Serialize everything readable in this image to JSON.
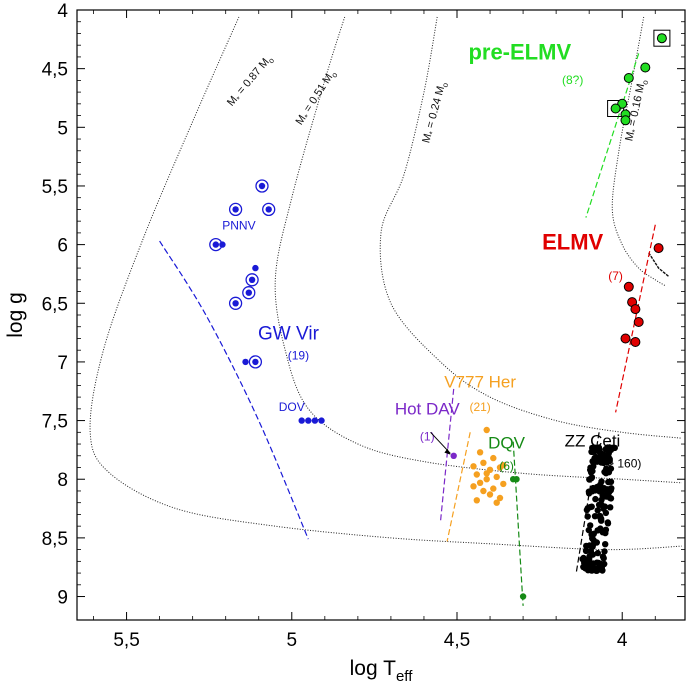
{
  "chart_data": {
    "type": "scatter",
    "xlabel_main": "log T",
    "xlabel_sub": "eff",
    "ylabel": "log g",
    "xlim": [
      5.65,
      3.81
    ],
    "ylim": [
      9.2,
      4.0
    ],
    "x_ticks": [
      5.5,
      5.0,
      4.5,
      4.0
    ],
    "x_tick_labels": [
      "5,5",
      "5",
      "4,5",
      "4"
    ],
    "y_ticks": [
      4,
      4.5,
      5,
      5.5,
      6,
      6.5,
      7,
      7.5,
      8,
      8.5,
      9
    ],
    "y_tick_labels": [
      "4",
      "4,5",
      "5",
      "5,5",
      "6",
      "6,5",
      "7",
      "7,5",
      "8",
      "8,5",
      "9"
    ],
    "tracks": [
      {
        "label": "M = 0.87 M",
        "points": [
          [
            5.16,
            4.06
          ],
          [
            5.3,
            4.95
          ],
          [
            5.45,
            5.95
          ],
          [
            5.57,
            6.9
          ],
          [
            5.61,
            7.6
          ],
          [
            5.55,
            7.95
          ],
          [
            5.35,
            8.25
          ],
          [
            5.05,
            8.4
          ],
          [
            4.7,
            8.5
          ],
          [
            4.4,
            8.55
          ],
          [
            4.05,
            8.6
          ],
          [
            3.82,
            8.57
          ]
        ]
      },
      {
        "label": "M = 0.51 M",
        "points": [
          [
            4.84,
            4.06
          ],
          [
            4.9,
            4.6
          ],
          [
            5.0,
            5.6
          ],
          [
            5.05,
            6.3
          ],
          [
            5.02,
            6.9
          ],
          [
            4.95,
            7.4
          ],
          [
            4.8,
            7.7
          ],
          [
            4.6,
            7.85
          ],
          [
            4.3,
            7.95
          ],
          [
            4.0,
            8.0
          ],
          [
            3.82,
            8.03
          ]
        ]
      },
      {
        "label": "M = 0.24 M",
        "points": [
          [
            4.56,
            4.06
          ],
          [
            4.6,
            4.7
          ],
          [
            4.66,
            5.4
          ],
          [
            4.73,
            5.9
          ],
          [
            4.7,
            6.5
          ],
          [
            4.55,
            7.0
          ],
          [
            4.4,
            7.3
          ],
          [
            4.2,
            7.5
          ],
          [
            4.0,
            7.6
          ],
          [
            3.82,
            7.65
          ]
        ]
      },
      {
        "label": "M = 0.16 M",
        "points": [
          [
            3.935,
            4.06
          ],
          [
            3.97,
            4.6
          ],
          [
            4.01,
            5.2
          ],
          [
            4.03,
            5.7
          ],
          [
            4.0,
            6.0
          ],
          [
            3.95,
            6.2
          ],
          [
            3.9,
            6.3
          ],
          [
            3.87,
            6.35
          ]
        ]
      }
    ],
    "groups": [
      {
        "name": "pre-ELMV",
        "count": "(8?)",
        "color": "#22dd22",
        "edge": "#000000"
      },
      {
        "name": "ELMV",
        "count": "(7)",
        "color": "#e00000",
        "edge": "#000000"
      },
      {
        "name": "GW Vir",
        "count": "(19)",
        "color": "#1a1ad6",
        "edge": "#1a1ad6"
      },
      {
        "name": "Hot DAV",
        "count": "(1)",
        "color": "#7b28c8",
        "edge": "#7b28c8"
      },
      {
        "name": "V777 Her",
        "count": "(21)",
        "color": "#f5a020",
        "edge": "#f5a020"
      },
      {
        "name": "DQV",
        "count": "(6)",
        "color": "#158a15",
        "edge": "#158a15"
      },
      {
        "name": "ZZ Ceti",
        "count": "(> 160)",
        "color": "#000000",
        "edge": "#000000"
      }
    ],
    "subgroups": [
      "PNNV",
      "DOV"
    ],
    "series": [
      {
        "name": "pre-ELMV",
        "group": 0,
        "points": [
          [
            3.88,
            4.24
          ],
          [
            3.98,
            4.58
          ],
          [
            3.93,
            4.49
          ],
          [
            4.0,
            4.8
          ],
          [
            3.99,
            4.89
          ],
          [
            4.02,
            4.84
          ],
          [
            3.99,
            4.94
          ]
        ],
        "boxed": [
          [
            3.88,
            4.24
          ],
          [
            4.02,
            4.84
          ]
        ]
      },
      {
        "name": "ELMV",
        "group": 1,
        "points": [
          [
            3.89,
            6.03
          ],
          [
            3.98,
            6.36
          ],
          [
            3.97,
            6.49
          ],
          [
            3.96,
            6.55
          ],
          [
            3.95,
            6.66
          ],
          [
            3.99,
            6.8
          ],
          [
            3.96,
            6.83
          ]
        ]
      },
      {
        "name": "GW Vir",
        "group": 2,
        "points": [
          [
            5.09,
            5.5
          ],
          [
            5.17,
            5.7
          ],
          [
            5.07,
            5.7
          ],
          [
            5.23,
            6.0
          ],
          [
            5.21,
            6.0
          ],
          [
            5.11,
            6.2
          ],
          [
            5.12,
            6.3
          ],
          [
            5.13,
            6.41
          ],
          [
            5.17,
            6.5
          ],
          [
            5.14,
            7.0
          ],
          [
            5.11,
            7.0
          ],
          [
            4.97,
            7.5
          ],
          [
            4.95,
            7.5
          ],
          [
            4.93,
            7.5
          ],
          [
            4.91,
            7.5
          ]
        ],
        "ringed": [
          [
            5.09,
            5.5
          ],
          [
            5.17,
            5.7
          ],
          [
            5.07,
            5.7
          ],
          [
            5.23,
            6.0
          ],
          [
            5.12,
            6.3
          ],
          [
            5.13,
            6.41
          ],
          [
            5.17,
            6.5
          ],
          [
            5.11,
            7.0
          ]
        ]
      },
      {
        "name": "Hot DAV",
        "group": 3,
        "points": [
          [
            4.51,
            7.8
          ]
        ]
      },
      {
        "name": "V777 Her",
        "group": 4,
        "points": [
          [
            4.41,
            7.58
          ],
          [
            4.43,
            7.77
          ],
          [
            4.39,
            7.82
          ],
          [
            4.42,
            7.86
          ],
          [
            4.45,
            7.89
          ],
          [
            4.37,
            7.9
          ],
          [
            4.4,
            7.92
          ],
          [
            4.44,
            7.96
          ],
          [
            4.38,
            7.98
          ],
          [
            4.41,
            8.0
          ],
          [
            4.43,
            8.03
          ],
          [
            4.36,
            8.04
          ],
          [
            4.45,
            8.06
          ],
          [
            4.39,
            8.08
          ],
          [
            4.42,
            8.1
          ],
          [
            4.4,
            8.13
          ],
          [
            4.37,
            8.16
          ],
          [
            4.44,
            8.18
          ],
          [
            4.38,
            8.2
          ],
          [
            4.41,
            7.95
          ],
          [
            4.36,
            7.88
          ]
        ]
      },
      {
        "name": "DQV",
        "group": 5,
        "points": [
          [
            4.33,
            8.0
          ],
          [
            4.32,
            8.0
          ],
          [
            4.3,
            9.0
          ]
        ]
      },
      {
        "name": "ZZ Ceti",
        "group": 6,
        "cluster": {
          "x_range": [
            4.02,
            4.11
          ],
          "y_range": [
            7.73,
            8.78
          ],
          "n": 160
        }
      }
    ],
    "strip_lines": [
      {
        "group": 0,
        "points": [
          [
            3.95,
            4.37
          ],
          [
            4.11,
            5.77
          ]
        ]
      },
      {
        "group": 1,
        "points": [
          [
            3.9,
            5.83
          ],
          [
            4.02,
            7.43
          ]
        ]
      },
      {
        "group": 2,
        "points": [
          [
            5.4,
            5.97
          ],
          [
            5.26,
            6.6
          ],
          [
            5.1,
            7.5
          ],
          [
            4.95,
            8.51
          ]
        ]
      },
      {
        "group": 3,
        "points": [
          [
            4.51,
            7.23
          ],
          [
            4.55,
            8.36
          ]
        ]
      },
      {
        "group": 4,
        "points": [
          [
            4.46,
            7.6
          ],
          [
            4.53,
            8.53
          ]
        ]
      },
      {
        "group": 5,
        "points": [
          [
            4.33,
            7.68
          ],
          [
            4.3,
            9.08
          ]
        ]
      },
      {
        "group": 6,
        "points": [
          [
            4.07,
            7.6
          ],
          [
            4.14,
            8.81
          ]
        ]
      }
    ]
  }
}
